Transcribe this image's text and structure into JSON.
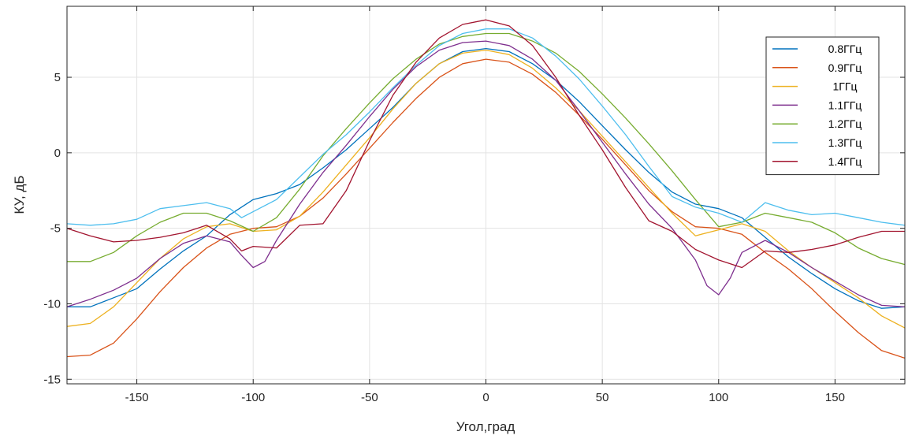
{
  "chart_data": {
    "type": "line",
    "title": "",
    "xlabel": "Угол,град",
    "ylabel": "КУ, дБ",
    "xlim": [
      -180,
      180
    ],
    "ylim": [
      -15.3,
      9.7
    ],
    "xticks": [
      -150,
      -100,
      -50,
      0,
      50,
      100,
      150
    ],
    "yticks": [
      -15,
      -10,
      -5,
      0,
      5
    ],
    "grid": true,
    "legend_position": "top-right",
    "series": [
      {
        "name": "0.8ГГц",
        "color": "#0072BD",
        "points": [
          [
            -180,
            -10.2
          ],
          [
            -170,
            -10.2
          ],
          [
            -160,
            -9.6
          ],
          [
            -150,
            -9.0
          ],
          [
            -140,
            -7.7
          ],
          [
            -130,
            -6.5
          ],
          [
            -120,
            -5.5
          ],
          [
            -110,
            -4.1
          ],
          [
            -100,
            -3.1
          ],
          [
            -90,
            -2.7
          ],
          [
            -80,
            -2.1
          ],
          [
            -70,
            -1.0
          ],
          [
            -60,
            0.2
          ],
          [
            -50,
            1.6
          ],
          [
            -40,
            3.0
          ],
          [
            -30,
            4.6
          ],
          [
            -20,
            5.9
          ],
          [
            -10,
            6.7
          ],
          [
            0,
            6.9
          ],
          [
            10,
            6.7
          ],
          [
            20,
            5.9
          ],
          [
            30,
            4.8
          ],
          [
            40,
            3.4
          ],
          [
            50,
            1.8
          ],
          [
            60,
            0.2
          ],
          [
            70,
            -1.3
          ],
          [
            80,
            -2.6
          ],
          [
            90,
            -3.4
          ],
          [
            100,
            -3.7
          ],
          [
            110,
            -4.3
          ],
          [
            120,
            -5.6
          ],
          [
            130,
            -6.9
          ],
          [
            140,
            -8.0
          ],
          [
            150,
            -9.0
          ],
          [
            160,
            -9.8
          ],
          [
            170,
            -10.3
          ],
          [
            180,
            -10.2
          ]
        ]
      },
      {
        "name": "0.9ГГц",
        "color": "#D95319",
        "points": [
          [
            -180,
            -13.5
          ],
          [
            -170,
            -13.4
          ],
          [
            -160,
            -12.6
          ],
          [
            -150,
            -11.0
          ],
          [
            -140,
            -9.2
          ],
          [
            -130,
            -7.6
          ],
          [
            -120,
            -6.3
          ],
          [
            -110,
            -5.4
          ],
          [
            -100,
            -5.0
          ],
          [
            -90,
            -4.9
          ],
          [
            -80,
            -4.2
          ],
          [
            -70,
            -3.0
          ],
          [
            -60,
            -1.4
          ],
          [
            -50,
            0.3
          ],
          [
            -40,
            2.0
          ],
          [
            -30,
            3.6
          ],
          [
            -20,
            5.0
          ],
          [
            -10,
            5.9
          ],
          [
            0,
            6.2
          ],
          [
            10,
            6.0
          ],
          [
            20,
            5.2
          ],
          [
            30,
            4.0
          ],
          [
            40,
            2.5
          ],
          [
            50,
            0.9
          ],
          [
            60,
            -0.8
          ],
          [
            70,
            -2.5
          ],
          [
            80,
            -3.9
          ],
          [
            90,
            -4.9
          ],
          [
            100,
            -5.0
          ],
          [
            110,
            -5.4
          ],
          [
            120,
            -6.6
          ],
          [
            130,
            -7.7
          ],
          [
            140,
            -9.0
          ],
          [
            150,
            -10.5
          ],
          [
            160,
            -11.9
          ],
          [
            170,
            -13.1
          ],
          [
            180,
            -13.6
          ]
        ]
      },
      {
        "name": "1ГГц",
        "color": "#EDB120",
        "points": [
          [
            -180,
            -11.5
          ],
          [
            -170,
            -11.3
          ],
          [
            -160,
            -10.2
          ],
          [
            -150,
            -8.6
          ],
          [
            -140,
            -7.0
          ],
          [
            -130,
            -5.7
          ],
          [
            -120,
            -4.9
          ],
          [
            -110,
            -4.7
          ],
          [
            -100,
            -5.2
          ],
          [
            -90,
            -5.1
          ],
          [
            -80,
            -4.2
          ],
          [
            -70,
            -2.6
          ],
          [
            -60,
            -0.8
          ],
          [
            -50,
            1.0
          ],
          [
            -40,
            2.9
          ],
          [
            -30,
            4.6
          ],
          [
            -20,
            5.9
          ],
          [
            -10,
            6.6
          ],
          [
            0,
            6.8
          ],
          [
            10,
            6.5
          ],
          [
            20,
            5.6
          ],
          [
            30,
            4.3
          ],
          [
            40,
            2.8
          ],
          [
            50,
            1.1
          ],
          [
            60,
            -0.6
          ],
          [
            70,
            -2.3
          ],
          [
            80,
            -4.0
          ],
          [
            90,
            -5.5
          ],
          [
            100,
            -5.1
          ],
          [
            110,
            -4.7
          ],
          [
            120,
            -5.2
          ],
          [
            130,
            -6.5
          ],
          [
            140,
            -7.6
          ],
          [
            150,
            -8.6
          ],
          [
            160,
            -9.6
          ],
          [
            170,
            -10.8
          ],
          [
            180,
            -11.6
          ]
        ]
      },
      {
        "name": "1.1ГГц",
        "color": "#7E2F8E",
        "points": [
          [
            -180,
            -10.2
          ],
          [
            -170,
            -9.7
          ],
          [
            -160,
            -9.1
          ],
          [
            -150,
            -8.3
          ],
          [
            -140,
            -7.0
          ],
          [
            -130,
            -6.0
          ],
          [
            -120,
            -5.5
          ],
          [
            -110,
            -5.9
          ],
          [
            -105,
            -6.8
          ],
          [
            -100,
            -7.6
          ],
          [
            -95,
            -7.2
          ],
          [
            -90,
            -5.8
          ],
          [
            -80,
            -3.4
          ],
          [
            -70,
            -1.3
          ],
          [
            -60,
            0.5
          ],
          [
            -50,
            2.4
          ],
          [
            -40,
            4.2
          ],
          [
            -30,
            5.7
          ],
          [
            -20,
            6.8
          ],
          [
            -10,
            7.3
          ],
          [
            0,
            7.4
          ],
          [
            10,
            7.1
          ],
          [
            20,
            6.2
          ],
          [
            30,
            4.8
          ],
          [
            40,
            2.8
          ],
          [
            50,
            0.7
          ],
          [
            60,
            -1.4
          ],
          [
            70,
            -3.4
          ],
          [
            80,
            -5.0
          ],
          [
            90,
            -7.1
          ],
          [
            95,
            -8.8
          ],
          [
            100,
            -9.4
          ],
          [
            105,
            -8.3
          ],
          [
            110,
            -6.6
          ],
          [
            120,
            -5.8
          ],
          [
            130,
            -6.6
          ],
          [
            140,
            -7.6
          ],
          [
            150,
            -8.5
          ],
          [
            160,
            -9.4
          ],
          [
            170,
            -10.1
          ],
          [
            180,
            -10.2
          ]
        ]
      },
      {
        "name": "1.2ГГц",
        "color": "#77AC30",
        "points": [
          [
            -180,
            -7.2
          ],
          [
            -170,
            -7.2
          ],
          [
            -160,
            -6.6
          ],
          [
            -150,
            -5.5
          ],
          [
            -140,
            -4.6
          ],
          [
            -130,
            -4.0
          ],
          [
            -120,
            -4.0
          ],
          [
            -110,
            -4.5
          ],
          [
            -100,
            -5.2
          ],
          [
            -90,
            -4.3
          ],
          [
            -80,
            -2.4
          ],
          [
            -70,
            -0.2
          ],
          [
            -60,
            1.6
          ],
          [
            -50,
            3.3
          ],
          [
            -40,
            4.9
          ],
          [
            -30,
            6.2
          ],
          [
            -20,
            7.2
          ],
          [
            -10,
            7.7
          ],
          [
            0,
            7.9
          ],
          [
            10,
            7.9
          ],
          [
            20,
            7.4
          ],
          [
            30,
            6.6
          ],
          [
            40,
            5.4
          ],
          [
            50,
            3.9
          ],
          [
            60,
            2.3
          ],
          [
            70,
            0.6
          ],
          [
            80,
            -1.2
          ],
          [
            90,
            -3.1
          ],
          [
            100,
            -4.9
          ],
          [
            110,
            -4.6
          ],
          [
            120,
            -4.0
          ],
          [
            130,
            -4.3
          ],
          [
            140,
            -4.6
          ],
          [
            150,
            -5.3
          ],
          [
            160,
            -6.3
          ],
          [
            170,
            -7.0
          ],
          [
            180,
            -7.4
          ]
        ]
      },
      {
        "name": "1.3ГГц",
        "color": "#4DBEEE",
        "points": [
          [
            -180,
            -4.7
          ],
          [
            -170,
            -4.8
          ],
          [
            -160,
            -4.7
          ],
          [
            -150,
            -4.4
          ],
          [
            -140,
            -3.7
          ],
          [
            -130,
            -3.5
          ],
          [
            -120,
            -3.3
          ],
          [
            -110,
            -3.7
          ],
          [
            -105,
            -4.3
          ],
          [
            -100,
            -3.9
          ],
          [
            -90,
            -3.1
          ],
          [
            -80,
            -1.6
          ],
          [
            -70,
            -0.1
          ],
          [
            -60,
            1.2
          ],
          [
            -50,
            2.7
          ],
          [
            -40,
            4.3
          ],
          [
            -30,
            5.8
          ],
          [
            -20,
            7.1
          ],
          [
            -10,
            7.9
          ],
          [
            0,
            8.2
          ],
          [
            10,
            8.2
          ],
          [
            20,
            7.6
          ],
          [
            30,
            6.4
          ],
          [
            40,
            4.9
          ],
          [
            50,
            3.1
          ],
          [
            60,
            1.2
          ],
          [
            70,
            -0.9
          ],
          [
            80,
            -2.9
          ],
          [
            90,
            -3.6
          ],
          [
            100,
            -4.0
          ],
          [
            110,
            -4.6
          ],
          [
            120,
            -3.3
          ],
          [
            130,
            -3.8
          ],
          [
            140,
            -4.1
          ],
          [
            150,
            -4.0
          ],
          [
            160,
            -4.3
          ],
          [
            170,
            -4.6
          ],
          [
            180,
            -4.8
          ]
        ]
      },
      {
        "name": "1.4ГГц",
        "color": "#A2142F",
        "points": [
          [
            -180,
            -5.0
          ],
          [
            -170,
            -5.5
          ],
          [
            -160,
            -5.9
          ],
          [
            -150,
            -5.8
          ],
          [
            -140,
            -5.6
          ],
          [
            -130,
            -5.3
          ],
          [
            -120,
            -4.8
          ],
          [
            -110,
            -5.7
          ],
          [
            -105,
            -6.5
          ],
          [
            -100,
            -6.2
          ],
          [
            -90,
            -6.3
          ],
          [
            -80,
            -4.8
          ],
          [
            -70,
            -4.7
          ],
          [
            -60,
            -2.5
          ],
          [
            -50,
            0.8
          ],
          [
            -40,
            3.8
          ],
          [
            -30,
            6.0
          ],
          [
            -20,
            7.6
          ],
          [
            -10,
            8.5
          ],
          [
            0,
            8.8
          ],
          [
            10,
            8.4
          ],
          [
            20,
            7.1
          ],
          [
            30,
            5.0
          ],
          [
            40,
            2.5
          ],
          [
            50,
            0.2
          ],
          [
            60,
            -2.3
          ],
          [
            70,
            -4.5
          ],
          [
            80,
            -5.2
          ],
          [
            90,
            -6.4
          ],
          [
            100,
            -7.1
          ],
          [
            110,
            -7.6
          ],
          [
            120,
            -6.5
          ],
          [
            130,
            -6.6
          ],
          [
            140,
            -6.4
          ],
          [
            150,
            -6.1
          ],
          [
            160,
            -5.6
          ],
          [
            170,
            -5.2
          ],
          [
            180,
            -5.2
          ]
        ]
      }
    ]
  }
}
